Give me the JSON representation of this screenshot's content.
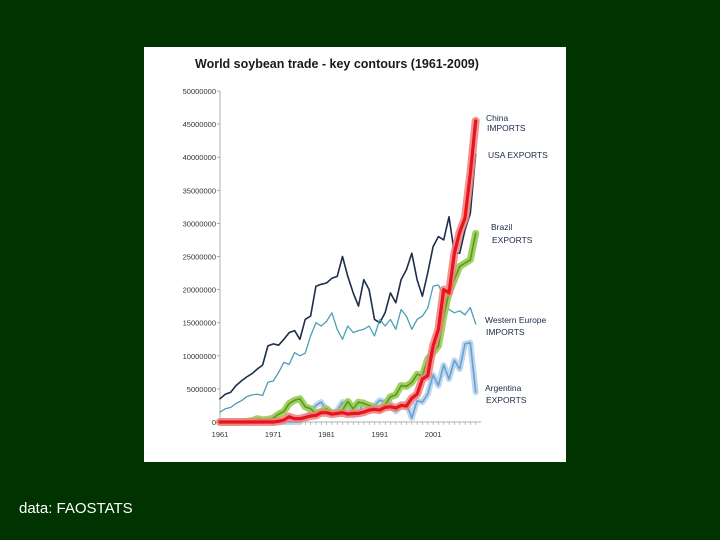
{
  "caption": "data: FAOSTATS",
  "colors": {
    "background": "#003300",
    "usa": "#1c2e4a",
    "europe": "#4a9fb5",
    "china_core": "#e8141b",
    "china_glow": "#f08080",
    "brazil_core": "#5a9a1a",
    "brazil_glow": "#9acd5a",
    "argentina_core": "#6a9fcf",
    "argentina_glow": "#b8d4ee"
  },
  "chart_data": {
    "type": "line",
    "title": "World soybean trade - key contours (1961-2009)",
    "xlabel": "",
    "ylabel": "",
    "xlim": [
      1961,
      2010
    ],
    "ylim": [
      0,
      50000000
    ],
    "y_ticks": [
      "50000000",
      "45000000",
      "40000000",
      "35000000",
      "30000000",
      "25000000",
      "20000000",
      "15000000",
      "10000000",
      "5000000",
      "0"
    ],
    "x_ticks": [
      "1961",
      "1971",
      "1981",
      "1991",
      "2001"
    ],
    "x": [
      1961,
      1962,
      1963,
      1964,
      1965,
      1966,
      1967,
      1968,
      1969,
      1970,
      1971,
      1972,
      1973,
      1974,
      1975,
      1976,
      1977,
      1978,
      1979,
      1980,
      1981,
      1982,
      1983,
      1984,
      1985,
      1986,
      1987,
      1988,
      1989,
      1990,
      1991,
      1992,
      1993,
      1994,
      1995,
      1996,
      1997,
      1998,
      1999,
      2000,
      2001,
      2002,
      2003,
      2004,
      2005,
      2006,
      2007,
      2008,
      2009
    ],
    "series": [
      {
        "name": "USA EXPORTS",
        "label_line1": "USA EXPORTS",
        "label_line2": "",
        "style": "usa",
        "values": [
          3500000,
          4200000,
          4500000,
          5500000,
          6200000,
          6800000,
          7300000,
          8000000,
          8600000,
          11500000,
          11800000,
          11600000,
          12500000,
          13500000,
          13800000,
          12500000,
          15500000,
          16000000,
          20500000,
          20800000,
          21000000,
          21700000,
          22000000,
          25000000,
          22000000,
          19500000,
          17500000,
          21500000,
          20000000,
          15500000,
          15000000,
          16500000,
          19500000,
          18000000,
          21500000,
          23000000,
          25500000,
          21500000,
          19000000,
          22500000,
          26500000,
          28000000,
          27500000,
          31000000,
          25500000,
          25500000,
          29000000,
          31500000,
          40500000
        ]
      },
      {
        "name": "China IMPORTS",
        "label_line1": "China",
        "label_line2": "IMPORTS",
        "style": "china",
        "values": [
          0,
          0,
          0,
          0,
          0,
          0,
          0,
          0,
          0,
          0,
          0,
          100000,
          300000,
          800000,
          500000,
          500000,
          700000,
          900000,
          1000000,
          1400000,
          1400000,
          1200000,
          1300000,
          1400000,
          1200000,
          1300000,
          1300000,
          1500000,
          1800000,
          1900000,
          1800000,
          2200000,
          2300000,
          2100000,
          2500000,
          2400000,
          3600000,
          4200000,
          6500000,
          7000000,
          11500000,
          14000000,
          20000000,
          19500000,
          25500000,
          28700000,
          30800000,
          37500000,
          45500000
        ]
      },
      {
        "name": "Brazil EXPORTS",
        "label_line1": "Brazil",
        "label_line2": "EXPORTS",
        "style": "brazil",
        "values": [
          0,
          0,
          0,
          0,
          0,
          100000,
          200000,
          500000,
          300000,
          400000,
          600000,
          1200000,
          1600000,
          2800000,
          3300000,
          3500000,
          2300000,
          2000000,
          1300000,
          1600000,
          2000000,
          1300000,
          1400000,
          1800000,
          3100000,
          2000000,
          3000000,
          2800000,
          2500000,
          2200000,
          2000000,
          2600000,
          3800000,
          4100000,
          5500000,
          5400000,
          6000000,
          7200000,
          7000000,
          9500000,
          10500000,
          11500000,
          16000000,
          19500000,
          21500000,
          23500000,
          24000000,
          24500000,
          28500000
        ]
      },
      {
        "name": "Western Europe IMPORTS",
        "label_line1": "Western Europe",
        "label_line2": "IMPORTS",
        "style": "europe",
        "values": [
          1500000,
          2000000,
          2200000,
          2800000,
          3200000,
          3800000,
          4100000,
          4200000,
          4000000,
          6000000,
          6200000,
          7500000,
          9000000,
          8700000,
          10500000,
          10000000,
          10400000,
          13000000,
          15000000,
          14500000,
          15200000,
          16500000,
          14000000,
          12500000,
          14500000,
          13500000,
          13800000,
          14000000,
          14500000,
          13000000,
          15500000,
          14500000,
          15500000,
          14000000,
          17000000,
          16000000,
          14000000,
          15500000,
          16000000,
          17200000,
          20500000,
          20700000,
          19000000,
          17000000,
          16500000,
          16800000,
          16200000,
          17300000,
          14800000
        ]
      },
      {
        "name": "Argentina EXPORTS",
        "label_line1": "Argentina",
        "label_line2": "EXPORTS",
        "style": "argentina",
        "values": [
          0,
          0,
          0,
          0,
          0,
          0,
          0,
          0,
          0,
          0,
          0,
          0,
          0,
          0,
          0,
          0,
          600000,
          1500000,
          2500000,
          3000000,
          1800000,
          1200000,
          1800000,
          3000000,
          2500000,
          1000000,
          1400000,
          3000000,
          1800000,
          2500000,
          3300000,
          3000000,
          2800000,
          1600000,
          2500000,
          2800000,
          600000,
          3200000,
          3000000,
          4200000,
          7100000,
          5500000,
          8600000,
          6500000,
          9300000,
          8000000,
          11800000,
          12000000,
          4500000
        ]
      }
    ]
  }
}
